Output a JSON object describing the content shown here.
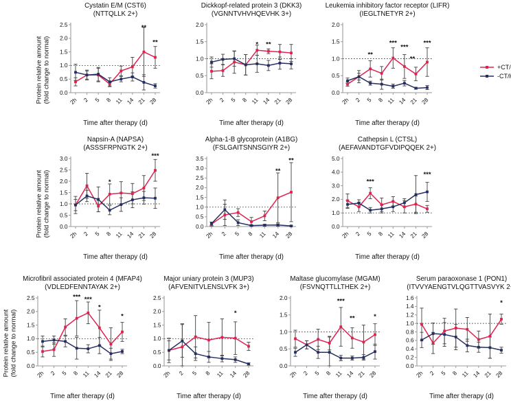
{
  "style": {
    "plus_ct_color": "#e0214f",
    "minus_ct_color": "#242e5f",
    "error_bar_color": "#3d3d3d",
    "axis_color": "#9a9a9a",
    "reference_line_color": "#444444",
    "text_color": "#111111",
    "background": "#ffffff"
  },
  "labels": {
    "ylabel_line1": "Protein relative amount",
    "ylabel_line2": "(fold change to normal)",
    "xlabel": "Time after therapy (d)"
  },
  "legend": {
    "items": [
      {
        "label": "+CT/Healthy",
        "series": "plus_ct"
      },
      {
        "label": "-CT/Healthy",
        "series": "minus_ct"
      }
    ]
  },
  "chart_data": [
    {
      "type": "line",
      "title": "Cystatin E/M (CST6)",
      "subtitle": "(NTTQLLK 2+)",
      "xlabel": "Time after therapy (d)",
      "ylabel": "Protein relative amount (fold change to normal)",
      "categories": [
        "2h",
        "2",
        "5",
        "8",
        "11",
        "14",
        "21",
        "28"
      ],
      "ylim": [
        0,
        2.5
      ],
      "ytick_step": 0.5,
      "reference_line_y": 1.0,
      "series": [
        {
          "name": "+CT/Healthy",
          "values": [
            0.4,
            0.65,
            0.65,
            0.32,
            0.8,
            0.95,
            1.5,
            1.3
          ],
          "errors": [
            0.15,
            0.15,
            0.25,
            0.1,
            0.18,
            0.35,
            0.9,
            0.4
          ]
        },
        {
          "name": "-CT/Healthy",
          "values": [
            0.75,
            0.65,
            0.68,
            0.4,
            0.5,
            0.58,
            0.38,
            0.25
          ],
          "errors": [
            0.3,
            0.18,
            0.25,
            0.15,
            0.1,
            0.15,
            0.28,
            0.08
          ]
        }
      ],
      "significance": [
        {
          "x": 6,
          "label": "**",
          "y": 2.42
        },
        {
          "x": 7,
          "label": "**",
          "y": 1.88
        }
      ]
    },
    {
      "type": "line",
      "title": "Dickkopf-related protein 3 (DKK3)",
      "subtitle": "(VGNNTVHVHQEVHK 3+)",
      "xlabel": "Time after therapy (d)",
      "ylabel": "Protein relative amount (fold change to normal)",
      "categories": [
        "2h",
        "2",
        "5",
        "8",
        "11",
        "14",
        "21",
        "28"
      ],
      "ylim": [
        0,
        2.0
      ],
      "ytick_step": 0.5,
      "reference_line_y": 1.0,
      "series": [
        {
          "name": "+CT/Healthy",
          "values": [
            0.63,
            0.65,
            0.9,
            0.82,
            1.25,
            1.22,
            1.2,
            1.17
          ],
          "errors": [
            0.22,
            0.17,
            0.33,
            0.3,
            0.15,
            0.07,
            0.22,
            0.25
          ]
        },
        {
          "name": "-CT/Healthy",
          "values": [
            0.9,
            0.98,
            1.0,
            0.82,
            0.85,
            0.8,
            0.87,
            0.85
          ],
          "errors": [
            0.15,
            0.15,
            0.22,
            0.3,
            0.25,
            0.15,
            0.18,
            0.15
          ]
        }
      ],
      "significance": [
        {
          "x": 4,
          "label": "*",
          "y": 1.44
        },
        {
          "x": 5,
          "label": "**",
          "y": 1.44
        }
      ]
    },
    {
      "type": "line",
      "title": "Leukemia inhibitory factor receptor (LIFR)",
      "subtitle": "(IEGLTNETYR 2+)",
      "xlabel": "Time after therapy (d)",
      "ylabel": "Protein relative amount (fold change to normal)",
      "categories": [
        "2h",
        "2",
        "5",
        "8",
        "11",
        "14",
        "21",
        "28"
      ],
      "ylim": [
        0,
        2.0
      ],
      "ytick_step": 0.5,
      "reference_line_y": 1.0,
      "series": [
        {
          "name": "+CT/Healthy",
          "values": [
            0.25,
            0.47,
            0.7,
            0.57,
            1.02,
            0.77,
            0.55,
            0.9
          ],
          "errors": [
            0.06,
            0.1,
            0.24,
            0.2,
            0.3,
            0.35,
            0.2,
            0.42
          ]
        },
        {
          "name": "-CT/Healthy",
          "values": [
            0.35,
            0.47,
            0.28,
            0.25,
            0.19,
            0.28,
            0.13,
            0.15
          ],
          "errors": [
            0.08,
            0.18,
            0.06,
            0.15,
            0.06,
            0.08,
            0.03,
            0.06
          ]
        }
      ],
      "significance": [
        {
          "x": 2,
          "label": "**",
          "y": 1.14
        },
        {
          "x": 4,
          "label": "***",
          "y": 1.48
        },
        {
          "x": 5,
          "label": "***",
          "y": 1.36
        },
        {
          "x": 5.7,
          "label": "**",
          "y": 1.02
        },
        {
          "x": 7,
          "label": "***",
          "y": 1.48
        }
      ]
    },
    {
      "type": "line",
      "title": "Napsin-A (NAPSA)",
      "subtitle": "(ASSSFRPNGTK 2+)",
      "xlabel": "Time after therapy (d)",
      "ylabel": "Protein relative amount (fold change to normal)",
      "categories": [
        "2h",
        "2",
        "5",
        "8",
        "11",
        "14",
        "21",
        "28"
      ],
      "ylim": [
        0,
        3.0
      ],
      "ytick_step": 0.5,
      "reference_line_y": 1.0,
      "series": [
        {
          "name": "+CT/Healthy",
          "values": [
            0.95,
            1.8,
            0.9,
            1.43,
            1.48,
            1.45,
            1.7,
            2.48
          ],
          "errors": [
            0.25,
            0.55,
            0.25,
            0.45,
            0.5,
            0.45,
            0.55,
            0.48
          ]
        },
        {
          "name": "-CT/Healthy",
          "values": [
            0.95,
            1.35,
            1.2,
            0.72,
            0.97,
            1.18,
            1.27,
            1.25
          ],
          "errors": [
            0.38,
            0.25,
            0.55,
            0.2,
            0.3,
            0.35,
            0.28,
            0.45
          ]
        }
      ],
      "significance": [
        {
          "x": 3,
          "label": "*",
          "y": 2.0
        },
        {
          "x": 7,
          "label": "***",
          "y": 3.15
        }
      ]
    },
    {
      "type": "line",
      "title": "Alpha-1-B glycoprotein (A1BG)",
      "subtitle": "(FSLGAITSNNSGIYR 2+)",
      "xlabel": "Time after therapy (d)",
      "ylabel": "Protein relative amount (fold change to normal)",
      "categories": [
        "2h",
        "2",
        "5",
        "8",
        "11",
        "14",
        "28"
      ],
      "ylim": [
        0,
        3.5
      ],
      "ytick_step": 0.5,
      "reference_line_y": 1.0,
      "series": [
        {
          "name": "+CT/Healthy",
          "values": [
            0.13,
            0.6,
            0.72,
            0.25,
            0.55,
            1.48,
            1.77
          ],
          "errors": [
            0.1,
            0.55,
            0.2,
            0.22,
            0.25,
            1.28,
            1.52
          ]
        },
        {
          "name": "-CT/Healthy",
          "values": [
            0.15,
            0.87,
            0.2,
            0.05,
            0.07,
            0.08,
            0.03
          ],
          "errors": [
            0.08,
            0.5,
            0.15,
            0.04,
            0.05,
            0.06,
            0.03
          ]
        }
      ],
      "significance": [
        {
          "x": 5,
          "label": "**",
          "y": 2.9
        },
        {
          "x": 6,
          "label": "**",
          "y": 3.45
        }
      ]
    },
    {
      "type": "line",
      "title": "Cathepsin L (CTSL)",
      "subtitle": "(AEFAVANDTGFVDIPQQEK 2+)",
      "xlabel": "Time after therapy (d)",
      "ylabel": "Protein relative amount (fold change to normal)",
      "categories": [
        "2h",
        "2",
        "5",
        "8",
        "11",
        "14",
        "21",
        "28"
      ],
      "ylim": [
        0,
        5.0
      ],
      "ytick_step": 1.0,
      "reference_line_y": 1.0,
      "series": [
        {
          "name": "+CT/Healthy",
          "values": [
            1.9,
            1.45,
            2.45,
            1.6,
            1.85,
            1.45,
            1.65,
            1.3
          ],
          "errors": [
            0.5,
            0.35,
            0.4,
            0.5,
            0.35,
            0.45,
            0.6,
            0.25
          ]
        },
        {
          "name": "-CT/Healthy",
          "values": [
            1.63,
            1.72,
            1.2,
            1.3,
            1.45,
            1.75,
            2.35,
            2.55
          ],
          "errors": [
            0.3,
            0.25,
            0.2,
            0.3,
            0.35,
            0.3,
            1.4,
            0.7
          ]
        }
      ],
      "significance": [
        {
          "x": 2,
          "label": "***",
          "y": 3.35
        },
        {
          "x": 7,
          "label": "***",
          "y": 3.9
        }
      ]
    },
    {
      "type": "line",
      "title": "Microfibril associated protein 4 (MFAP4)",
      "subtitle": "(VDLEDFENNTAYAK 2+)",
      "xlabel": "Time after therapy (d)",
      "ylabel": "Protein relative amount (fold change to normal)",
      "categories": [
        "2h",
        "2",
        "5",
        "8",
        "11",
        "14",
        "21",
        "28"
      ],
      "ylim": [
        0,
        2.5
      ],
      "ytick_step": 0.5,
      "reference_line_y": 1.0,
      "series": [
        {
          "name": "+CT/Healthy",
          "values": [
            0.53,
            0.6,
            1.43,
            1.75,
            1.95,
            1.4,
            0.8,
            1.25
          ],
          "errors": [
            0.2,
            0.25,
            0.3,
            0.65,
            0.4,
            0.65,
            0.6,
            0.35
          ]
        },
        {
          "name": "-CT/Healthy",
          "values": [
            0.9,
            0.95,
            0.9,
            0.65,
            0.63,
            0.75,
            0.45,
            0.53
          ],
          "errors": [
            0.2,
            0.15,
            0.2,
            0.4,
            0.15,
            0.3,
            0.2,
            0.08
          ]
        }
      ],
      "significance": [
        {
          "x": 3,
          "label": "***",
          "y": 2.56
        },
        {
          "x": 4,
          "label": "***",
          "y": 2.48
        },
        {
          "x": 5,
          "label": "*",
          "y": 2.18
        },
        {
          "x": 7,
          "label": "*",
          "y": 1.86
        }
      ]
    },
    {
      "type": "line",
      "title": "Major uniary protein 3 (MUP3)",
      "subtitle": "(AFVENITVLENSLVFK 3+)",
      "xlabel": "Time after therapy (d)",
      "ylabel": "Protein relative amount (fold change to normal)",
      "categories": [
        "2h",
        "2",
        "5",
        "8",
        "11",
        "14",
        "28"
      ],
      "ylim": [
        0,
        2.5
      ],
      "ytick_step": 0.5,
      "reference_line_y": 1.0,
      "series": [
        {
          "name": "+CT/Healthy",
          "values": [
            0.57,
            0.7,
            1.07,
            0.95,
            1.05,
            1.02,
            0.72
          ],
          "errors": [
            0.45,
            0.85,
            0.78,
            0.65,
            0.68,
            0.6,
            0.15
          ]
        },
        {
          "name": "-CT/Healthy",
          "values": [
            0.57,
            0.92,
            0.45,
            0.33,
            0.27,
            0.23,
            0.07
          ],
          "errors": [
            0.35,
            0.6,
            0.25,
            0.2,
            0.12,
            0.1,
            0.04
          ]
        }
      ],
      "significance": [
        {
          "x": 5,
          "label": "*",
          "y": 1.97
        }
      ]
    },
    {
      "type": "line",
      "title": "Maltase glucomylase (MGAM)",
      "subtitle": "(FSVNQTTLLTHEK 2+)",
      "xlabel": "Time after therapy (d)",
      "ylabel": "Protein relative amount (fold change to normal)",
      "categories": [
        "2h",
        "2",
        "5",
        "8",
        "11",
        "14",
        "21",
        "28"
      ],
      "ylim": [
        0,
        2.0
      ],
      "ytick_step": 0.5,
      "reference_line_y": 1.0,
      "series": [
        {
          "name": "+CT/Healthy",
          "values": [
            0.8,
            0.62,
            0.78,
            0.67,
            1.15,
            0.82,
            0.7,
            0.92
          ],
          "errors": [
            0.25,
            0.12,
            0.3,
            0.2,
            0.57,
            0.3,
            0.5,
            0.32
          ]
        },
        {
          "name": "-CT/Healthy",
          "values": [
            0.4,
            0.62,
            0.4,
            0.4,
            0.23,
            0.23,
            0.25,
            0.42
          ],
          "errors": [
            0.12,
            0.12,
            0.18,
            0.45,
            0.08,
            0.06,
            0.08,
            0.22
          ]
        }
      ],
      "significance": [
        {
          "x": 4,
          "label": "***",
          "y": 1.93
        },
        {
          "x": 5,
          "label": "**",
          "y": 1.42
        },
        {
          "x": 7,
          "label": "*",
          "y": 1.47
        }
      ]
    },
    {
      "type": "line",
      "title": "Serum paraoxonase 1 (PON1)",
      "subtitle": "(ITVVYAENGTVLQGTTVASVYK 2+)",
      "xlabel": "Time after therapy (d)",
      "ylabel": "Protein relative amount (fold change to normal)",
      "categories": [
        "2h",
        "2",
        "5",
        "8",
        "11",
        "14",
        "21",
        "28"
      ],
      "ylim": [
        0,
        1.6
      ],
      "ytick_step": 0.2,
      "reference_line_y": 1.0,
      "series": [
        {
          "name": "+CT/Healthy",
          "values": [
            0.98,
            0.54,
            0.82,
            0.89,
            0.86,
            0.62,
            0.7,
            1.1
          ],
          "errors": [
            0.38,
            0.25,
            0.3,
            0.45,
            0.28,
            0.2,
            0.52,
            0.12
          ]
        },
        {
          "name": "-CT/Healthy",
          "values": [
            0.61,
            0.76,
            0.74,
            0.68,
            0.48,
            0.44,
            0.43,
            0.37
          ],
          "errors": [
            0.18,
            0.25,
            0.28,
            0.3,
            0.15,
            0.12,
            0.25,
            0.07
          ]
        }
      ],
      "significance": [
        {
          "x": 7,
          "label": "*",
          "y": 1.5
        }
      ]
    }
  ]
}
